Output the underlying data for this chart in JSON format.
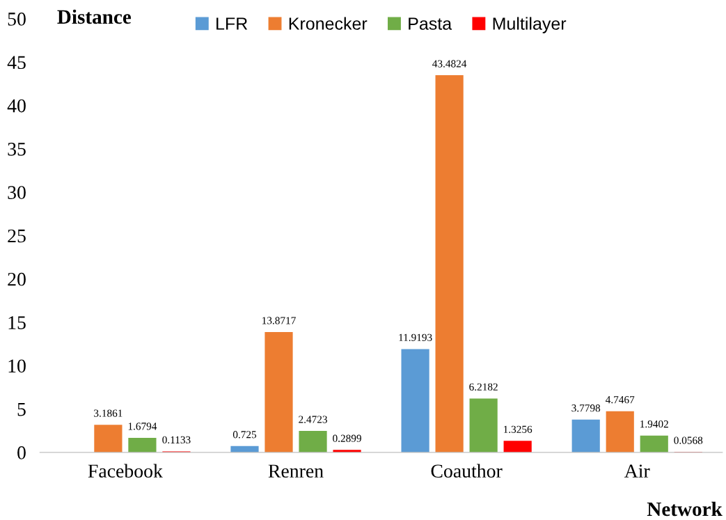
{
  "chart_data": {
    "type": "bar",
    "ylabel": "Distance",
    "xlabel": "Network",
    "categories": [
      "Facebook",
      "Renren",
      "Coauthor",
      "Air"
    ],
    "series": [
      {
        "name": "LFR",
        "color": "#5b9bd5",
        "values": [
          null,
          0.725,
          11.9193,
          3.7798
        ]
      },
      {
        "name": "Kronecker",
        "color": "#ed7d31",
        "values": [
          3.1861,
          13.8717,
          43.4824,
          4.7467
        ]
      },
      {
        "name": "Pasta",
        "color": "#70ad47",
        "values": [
          1.6794,
          2.4723,
          6.2182,
          1.9402
        ]
      },
      {
        "name": "Multilayer",
        "color": "#ff0000",
        "values": [
          0.1133,
          0.2899,
          1.3256,
          0.0568
        ]
      }
    ],
    "ylim": [
      0,
      50
    ],
    "yticks": [
      0,
      5,
      10,
      15,
      20,
      25,
      30,
      35,
      40,
      45,
      50
    ],
    "data_labels": true,
    "grid": false,
    "legend": "top"
  }
}
